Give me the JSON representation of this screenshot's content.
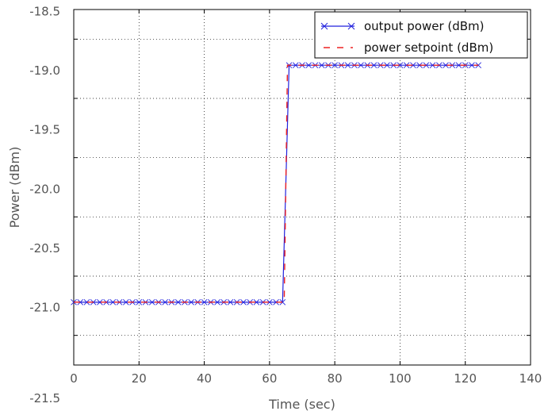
{
  "chart_data": {
    "type": "line",
    "title": "",
    "xlabel": "Time (sec)",
    "ylabel": "Power (dBm)",
    "xlim": [
      0,
      140
    ],
    "ylim": [
      -21.25,
      -18.25
    ],
    "xticks": [
      0,
      20,
      40,
      60,
      80,
      100,
      120,
      140
    ],
    "xtick_labels": [
      "0",
      "20",
      "40",
      "60",
      "80",
      "100",
      "120",
      "140"
    ],
    "yticks": [
      -21.0,
      -20.5,
      -20.0,
      -19.5,
      -19.0,
      -18.5
    ],
    "ytick_labels": [
      "-21.0",
      "-20.5",
      "-20.0",
      "-19.5",
      "-19.0",
      "-18.5"
    ],
    "extra_ytick_label": "-21.5",
    "grid": true,
    "legend_position": "top-right",
    "series": [
      {
        "name": "output power (dBm)",
        "color": "#2222dd",
        "style": "solid",
        "marker": "x",
        "x": [
          0,
          2,
          4,
          6,
          8,
          10,
          12,
          14,
          16,
          18,
          20,
          22,
          24,
          26,
          28,
          30,
          32,
          34,
          36,
          38,
          40,
          42,
          44,
          46,
          48,
          50,
          52,
          54,
          56,
          58,
          60,
          62,
          64,
          66,
          68,
          70,
          72,
          74,
          76,
          78,
          80,
          82,
          84,
          86,
          88,
          90,
          92,
          94,
          96,
          98,
          100,
          102,
          104,
          106,
          108,
          110,
          112,
          114,
          116,
          118,
          120,
          122,
          124
        ],
        "y": [
          -20.72,
          -20.72,
          -20.72,
          -20.72,
          -20.72,
          -20.72,
          -20.72,
          -20.72,
          -20.72,
          -20.72,
          -20.72,
          -20.72,
          -20.72,
          -20.72,
          -20.72,
          -20.72,
          -20.72,
          -20.72,
          -20.72,
          -20.72,
          -20.72,
          -20.72,
          -20.72,
          -20.72,
          -20.72,
          -20.72,
          -20.72,
          -20.72,
          -20.72,
          -20.72,
          -20.72,
          -20.72,
          -20.72,
          -18.72,
          -18.72,
          -18.72,
          -18.72,
          -18.72,
          -18.72,
          -18.72,
          -18.72,
          -18.72,
          -18.72,
          -18.72,
          -18.72,
          -18.72,
          -18.72,
          -18.72,
          -18.72,
          -18.72,
          -18.72,
          -18.72,
          -18.72,
          -18.72,
          -18.72,
          -18.72,
          -18.72,
          -18.72,
          -18.72,
          -18.72,
          -18.72,
          -18.72,
          -18.72
        ]
      },
      {
        "name": "power setpoint (dBm)",
        "color": "#ee2222",
        "style": "dashed",
        "marker": "none",
        "x": [
          0,
          64.5,
          65.5,
          124
        ],
        "y": [
          -20.72,
          -20.72,
          -18.72,
          -18.72
        ]
      }
    ]
  }
}
